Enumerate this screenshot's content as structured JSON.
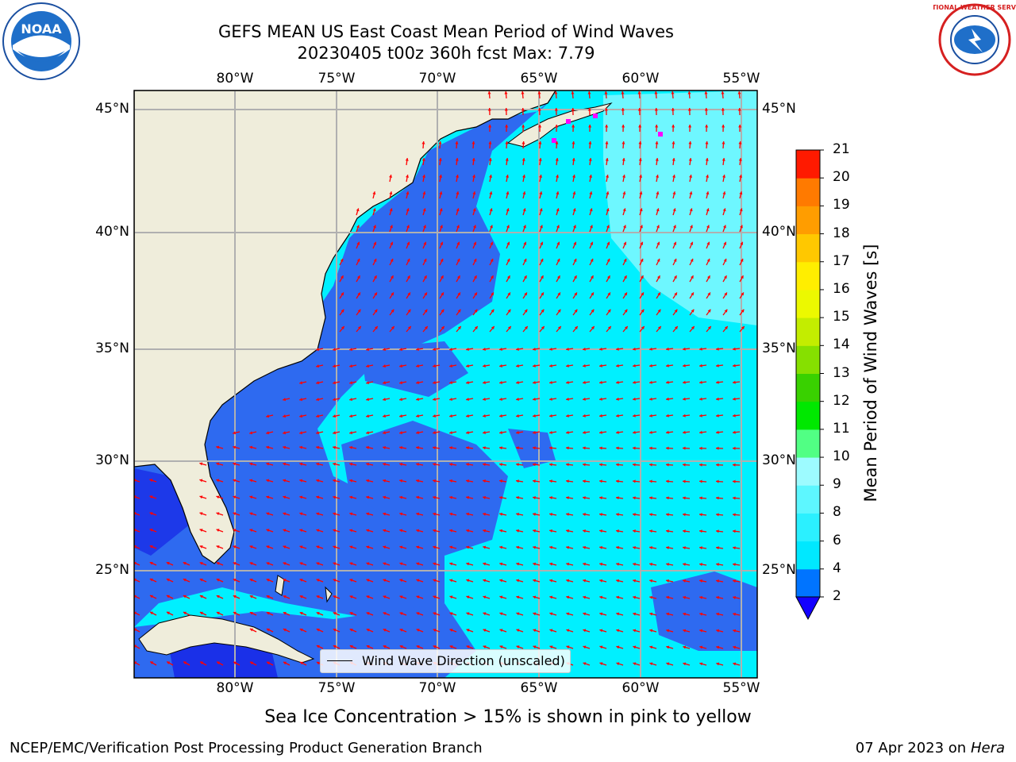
{
  "header": {
    "title_line1": "GEFS MEAN US East Coast Mean Period of Wind Waves",
    "title_line2": "20230405 t00z 360h fcst   Max: 7.79"
  },
  "logos": {
    "left_name": "NOAA",
    "right_name": "NATIONAL WEATHER SERVICE"
  },
  "axes": {
    "lon_labels": [
      "80°W",
      "75°W",
      "70°W",
      "65°W",
      "60°W",
      "55°W"
    ],
    "lat_labels": [
      "45°N",
      "40°N",
      "35°N",
      "30°N",
      "25°N"
    ]
  },
  "legend": {
    "label": "Wind Wave Direction (unscaled)"
  },
  "colorbar": {
    "label": "Mean Period of Wind Waves [s]",
    "ticks": [
      "2",
      "4",
      "6",
      "8",
      "9",
      "10",
      "11",
      "12",
      "13",
      "14",
      "15",
      "16",
      "17",
      "18",
      "19",
      "20",
      "21"
    ],
    "colors": [
      "#0074ff",
      "#00d9ff",
      "#2bf0ff",
      "#5df7ff",
      "#8ffbff",
      "#b3ffff",
      "#51ff84",
      "#00e800",
      "#39d100",
      "#86e000",
      "#c3ed00",
      "#ecf900",
      "#ffee00",
      "#ffc800",
      "#ff9d00",
      "#ff7a00",
      "#ff4400",
      "#ff1a00",
      "#ff0000"
    ]
  },
  "colors": {
    "land": "#efeddb",
    "ocean_low": "#2e6af0",
    "ocean_mid": "#00f0ff",
    "ocean_high": "#9df9ff",
    "arrow": "#ff0000",
    "grid": "#b0b0b0"
  },
  "footer": {
    "note": "Sea Ice Concentration > 15% is shown in pink to yellow",
    "left": "NCEP/EMC/Verification Post Processing Product Generation Branch",
    "right_prefix": "07 Apr 2023 on ",
    "right_machine": "Hera"
  }
}
